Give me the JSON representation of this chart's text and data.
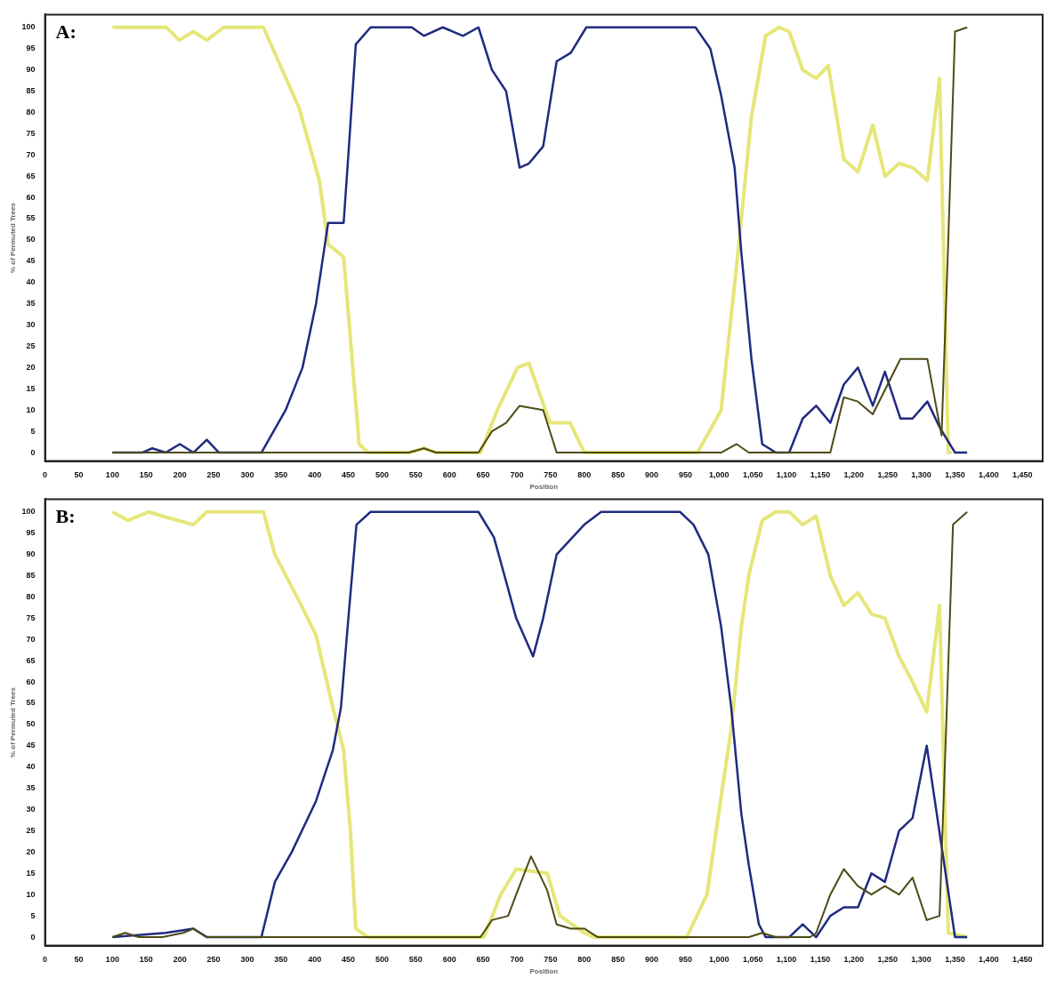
{
  "chart_data": [
    {
      "type": "line",
      "annotations": [
        "A:"
      ],
      "xlabel": "Position",
      "ylabel": "% of Permuted Trees",
      "xlim": [
        0,
        1480
      ],
      "ylim": [
        -2,
        103
      ],
      "xticks": [
        0,
        50,
        100,
        150,
        200,
        250,
        300,
        350,
        400,
        450,
        500,
        550,
        600,
        650,
        700,
        750,
        800,
        850,
        900,
        950,
        {
          "value": 1000,
          "label": "1,000"
        },
        {
          "value": 1050,
          "label": "1,050"
        },
        {
          "value": 1100,
          "label": "1,100"
        },
        {
          "value": 1150,
          "label": "1,150"
        },
        {
          "value": 1200,
          "label": "1,200"
        },
        {
          "value": 1250,
          "label": "1,250"
        },
        {
          "value": 1300,
          "label": "1,300"
        },
        {
          "value": 1350,
          "label": "1,350"
        },
        {
          "value": 1400,
          "label": "1,400"
        },
        {
          "value": 1450,
          "label": "1,450"
        }
      ],
      "yticks": [
        0,
        5,
        10,
        15,
        20,
        25,
        30,
        35,
        40,
        45,
        50,
        55,
        60,
        65,
        70,
        75,
        80,
        85,
        90,
        95,
        100
      ],
      "grid": false,
      "legend": false,
      "marker": "none",
      "line_style": "solid",
      "series": [
        {
          "color": "#e6e67a",
          "x": [
            100,
            180,
            199,
            220,
            240,
            265,
            324,
            377,
            407,
            420,
            443,
            466,
            479,
            540,
            562,
            580,
            646,
            671,
            701,
            718,
            749,
            779,
            800,
            968,
            1003,
            1028,
            1048,
            1069,
            1089,
            1104,
            1124,
            1144,
            1162,
            1185,
            1206,
            1228,
            1246,
            1267,
            1287,
            1309,
            1327,
            1340,
            1345
          ],
          "values": [
            100,
            100,
            97,
            99,
            97,
            100,
            100,
            81,
            64,
            49,
            46,
            2,
            0,
            0,
            1,
            0,
            0,
            10,
            20,
            21,
            7,
            7,
            0,
            0,
            10,
            47,
            79,
            98,
            100,
            99,
            90,
            88,
            91,
            69,
            66,
            77,
            65,
            68,
            67,
            64,
            88,
            0,
            0
          ]
        },
        {
          "color": "#1f2a80",
          "x": [
            100,
            144,
            159,
            179,
            200,
            220,
            240,
            258,
            321,
            357,
            382,
            402,
            420,
            443,
            450,
            461,
            483,
            544,
            562,
            590,
            620,
            643,
            663,
            684,
            704,
            718,
            739,
            759,
            780,
            803,
            965,
            987,
            1003,
            1023,
            1033,
            1048,
            1064,
            1084,
            1104,
            1124,
            1144,
            1165,
            1185,
            1206,
            1228,
            1246,
            1269,
            1287,
            1309,
            1327,
            1350,
            1368
          ],
          "values": [
            0,
            0,
            1,
            0,
            2,
            0,
            3,
            0,
            0,
            10,
            20,
            35,
            54,
            54,
            70,
            96,
            100,
            100,
            98,
            100,
            98,
            100,
            90,
            85,
            67,
            68,
            72,
            92,
            94,
            100,
            100,
            95,
            84,
            67,
            47,
            22,
            2,
            0,
            0,
            8,
            11,
            7,
            16,
            20,
            11,
            19,
            8,
            8,
            12,
            6,
            0,
            0
          ]
        },
        {
          "color": "#4d4a14",
          "x": [
            100,
            540,
            562,
            580,
            620,
            643,
            663,
            684,
            704,
            739,
            759,
            1003,
            1026,
            1044,
            1165,
            1185,
            1206,
            1228,
            1269,
            1309,
            1330,
            1340,
            1350,
            1368
          ],
          "values": [
            0,
            0,
            1,
            0,
            0,
            0,
            5,
            7,
            11,
            10,
            0,
            0,
            2,
            0,
            0,
            13,
            12,
            9,
            22,
            22,
            4,
            50,
            99,
            100
          ]
        }
      ]
    },
    {
      "type": "line",
      "annotations": [
        "B:"
      ],
      "xlabel": "Position",
      "ylabel": "% of Permuted Trees",
      "xlim": [
        0,
        1480
      ],
      "ylim": [
        -2,
        103
      ],
      "xticks": [
        0,
        50,
        100,
        150,
        200,
        250,
        300,
        350,
        400,
        450,
        500,
        550,
        600,
        650,
        700,
        750,
        800,
        850,
        900,
        950,
        {
          "value": 1000,
          "label": "1,000"
        },
        {
          "value": 1050,
          "label": "1,050"
        },
        {
          "value": 1100,
          "label": "1,100"
        },
        {
          "value": 1150,
          "label": "1,150"
        },
        {
          "value": 1200,
          "label": "1,200"
        },
        {
          "value": 1250,
          "label": "1,250"
        },
        {
          "value": 1300,
          "label": "1,300"
        },
        {
          "value": 1350,
          "label": "1,350"
        },
        {
          "value": 1400,
          "label": "1,400"
        },
        {
          "value": 1450,
          "label": "1,450"
        }
      ],
      "yticks": [
        0,
        5,
        10,
        15,
        20,
        25,
        30,
        35,
        40,
        45,
        50,
        55,
        60,
        65,
        70,
        75,
        80,
        85,
        90,
        95,
        100
      ],
      "grid": false,
      "legend": false,
      "marker": "none",
      "line_style": "solid",
      "series": [
        {
          "color": "#e6e67a",
          "x": [
            100,
            123,
            154,
            174,
            220,
            240,
            324,
            341,
            377,
            402,
            427,
            443,
            453,
            461,
            479,
            651,
            676,
            699,
            745,
            764,
            800,
            815,
            952,
            982,
            1003,
            1018,
            1033,
            1044,
            1064,
            1084,
            1104,
            1124,
            1144,
            1165,
            1185,
            1206,
            1226,
            1246,
            1267,
            1287,
            1308,
            1327,
            1340,
            1368
          ],
          "values": [
            100,
            98,
            100,
            99,
            97,
            100,
            100,
            90,
            79,
            71,
            54,
            44,
            25,
            2,
            0,
            0,
            10,
            16,
            15,
            5,
            1,
            0,
            0,
            10,
            33,
            49,
            73,
            85,
            98,
            100,
            100,
            97,
            99,
            85,
            78,
            81,
            76,
            75,
            66,
            60,
            53,
            78,
            1,
            0
          ]
        },
        {
          "color": "#1f2a80",
          "x": [
            100,
            179,
            220,
            240,
            321,
            341,
            366,
            402,
            427,
            439,
            450,
            462,
            483,
            643,
            666,
            699,
            724,
            739,
            759,
            800,
            825,
            942,
            962,
            984,
            1003,
            1018,
            1033,
            1044,
            1059,
            1069,
            1104,
            1124,
            1144,
            1165,
            1185,
            1206,
            1226,
            1246,
            1267,
            1287,
            1308,
            1350,
            1368
          ],
          "values": [
            0,
            1,
            2,
            0,
            0,
            13,
            20,
            32,
            44,
            54,
            75,
            97,
            100,
            100,
            94,
            75,
            66,
            75,
            90,
            97,
            100,
            100,
            97,
            90,
            73,
            54,
            29,
            17,
            3,
            0,
            0,
            3,
            0,
            5,
            7,
            7,
            15,
            13,
            25,
            28,
            45,
            0,
            0
          ]
        },
        {
          "color": "#4d4a14",
          "x": [
            100,
            119,
            139,
            174,
            205,
            220,
            240,
            646,
            663,
            687,
            699,
            721,
            745,
            759,
            780,
            800,
            820,
            1044,
            1064,
            1084,
            1135,
            1144,
            1165,
            1185,
            1206,
            1226,
            1246,
            1267,
            1287,
            1308,
            1327,
            1337,
            1347,
            1368
          ],
          "values": [
            0,
            1,
            0,
            0,
            1,
            2,
            0,
            0,
            4,
            5,
            10,
            19,
            11,
            3,
            2,
            2,
            0,
            0,
            1,
            0,
            0,
            1,
            10,
            16,
            12,
            10,
            12,
            10,
            14,
            4,
            5,
            50,
            97,
            100
          ]
        }
      ]
    }
  ]
}
